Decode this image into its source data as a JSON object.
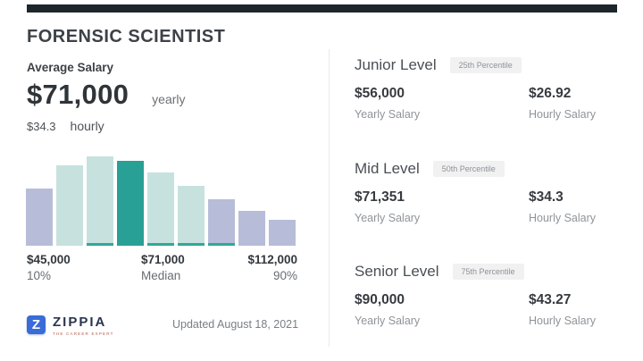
{
  "header": {
    "title": "FORENSIC SCIENTIST"
  },
  "summary": {
    "label": "Average Salary",
    "yearly_value": "$71,000",
    "yearly_unit": "yearly",
    "hourly_value": "$34.3",
    "hourly_unit": "hourly"
  },
  "chart_data": {
    "type": "bar",
    "title": "Forensic Scientist salary distribution histogram",
    "values": [
      64,
      90,
      100,
      95,
      82,
      67,
      52,
      39,
      29
    ],
    "values_note": "relative bar heights, tallest bar = 100; no y-axis shown",
    "highlight_index": 3,
    "underline_indices": [
      2,
      4,
      5,
      6
    ],
    "bar_colors": [
      "#b7bdd8",
      "#c7e2de",
      "#c7e2de",
      "#29a096",
      "#c7e2de",
      "#c7e2de",
      "#b7bdd8",
      "#b7bdd8",
      "#b7bdd8"
    ],
    "underline_color": "#2fa89a",
    "x_labels": [
      {
        "value": "$45,000",
        "sub": "10%"
      },
      {
        "value": "$71,000",
        "sub": "Median"
      },
      {
        "value": "$112,000",
        "sub": "90%"
      }
    ],
    "axis": {
      "percentile_10": 45000,
      "median": 71000,
      "percentile_90": 112000
    },
    "legend": "off",
    "grid": "off"
  },
  "levels": [
    {
      "name": "Junior Level",
      "badge": "25th Percentile",
      "yearly_value": "$56,000",
      "yearly_label": "Yearly Salary",
      "hourly_value": "$26.92",
      "hourly_label": "Hourly Salary"
    },
    {
      "name": "Mid Level",
      "badge": "50th Percentile",
      "yearly_value": "$71,351",
      "yearly_label": "Yearly Salary",
      "hourly_value": "$34.3",
      "hourly_label": "Hourly Salary"
    },
    {
      "name": "Senior Level",
      "badge": "75th Percentile",
      "yearly_value": "$90,000",
      "yearly_label": "Yearly Salary",
      "hourly_value": "$43.27",
      "hourly_label": "Hourly Salary"
    }
  ],
  "footer": {
    "logo_letter": "Z",
    "logo_text": "ZIPPIA",
    "logo_tagline": "THE CAREER EXPERT",
    "updated": "Updated August 18, 2021"
  },
  "colors": {
    "accent_teal": "#29a096",
    "bar_neutral": "#b7bdd8",
    "bar_mint": "#c7e2de",
    "topbar": "#1d262b",
    "badge_bg": "#f1f1f2",
    "divider": "#e8e9ea",
    "logo_blue": "#3a6bd7"
  }
}
